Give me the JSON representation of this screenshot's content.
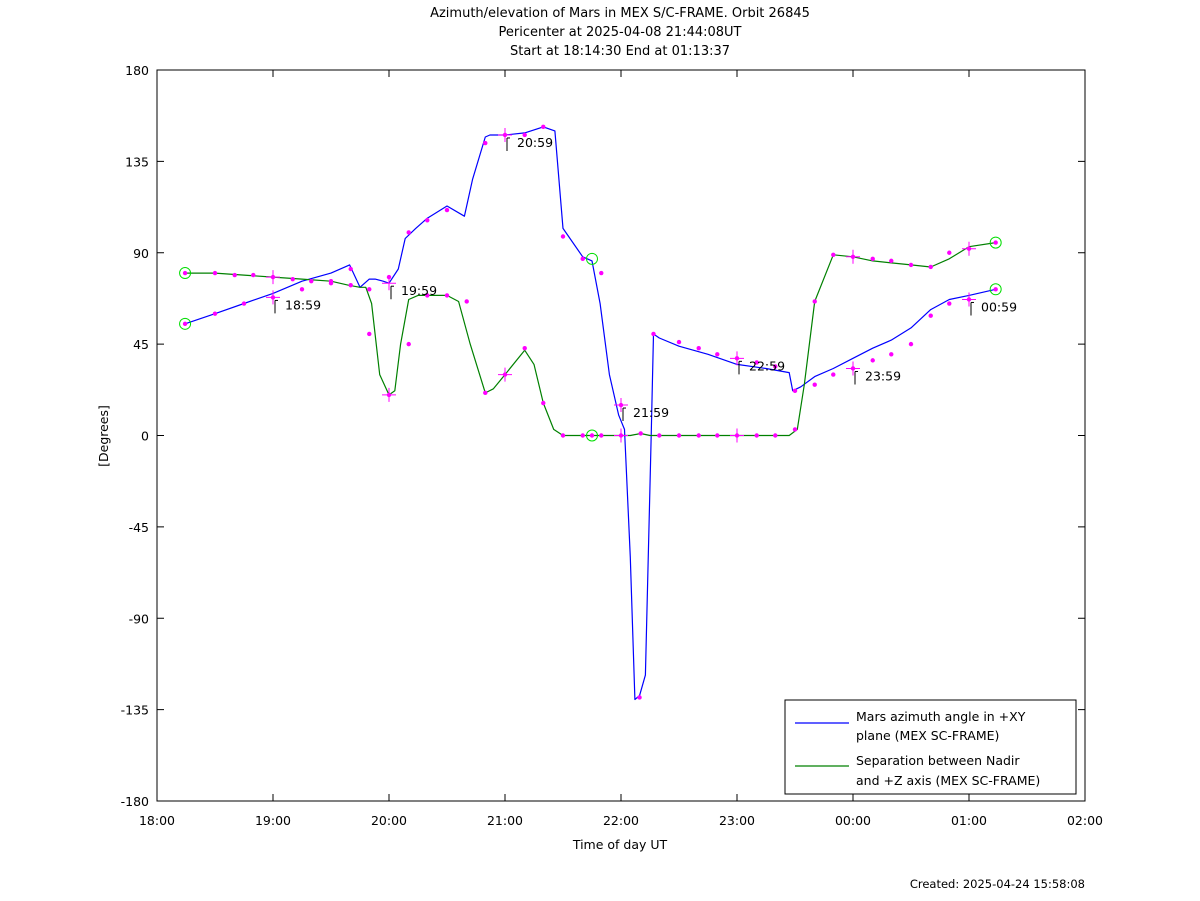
{
  "chart_data": {
    "type": "line",
    "title": "Azimuth/elevation of Mars in MEX S/C-FRAME.  Orbit 26845",
    "subtitle": "Pericenter at 2025-04-08 21:44:08UT",
    "subtitle2": "Start at 18:14:30 End at 01:13:37",
    "xlabel": "Time of day UT",
    "ylabel": "[Degrees]",
    "xlim": [
      18.0,
      26.0
    ],
    "ylim": [
      -180,
      180
    ],
    "x_ticks": [
      {
        "v": 18,
        "label": "18:00"
      },
      {
        "v": 19,
        "label": "19:00"
      },
      {
        "v": 20,
        "label": "20:00"
      },
      {
        "v": 21,
        "label": "21:00"
      },
      {
        "v": 22,
        "label": "22:00"
      },
      {
        "v": 23,
        "label": "23:00"
      },
      {
        "v": 24,
        "label": "00:00"
      },
      {
        "v": 25,
        "label": "01:00"
      },
      {
        "v": 26,
        "label": "02:00"
      }
    ],
    "y_ticks": [
      {
        "v": 180,
        "label": "180"
      },
      {
        "v": 135,
        "label": "135"
      },
      {
        "v": 90,
        "label": "90"
      },
      {
        "v": 45,
        "label": "45"
      },
      {
        "v": 0,
        "label": "0"
      },
      {
        "v": -45,
        "label": "-45"
      },
      {
        "v": -90,
        "label": "-90"
      },
      {
        "v": -135,
        "label": "-135"
      },
      {
        "v": -180,
        "label": "-180"
      }
    ],
    "grid": false,
    "legend_position": "bottom-right",
    "series": [
      {
        "name": "Mars azimuth angle in +XY plane (MEX SC-FRAME)",
        "legend_lines": [
          "Mars azimuth angle in +XY",
          "plane (MEX SC-FRAME)"
        ],
        "color": "#0000ff",
        "x": [
          18.242,
          18.5,
          18.75,
          19.0,
          19.25,
          19.5,
          19.66,
          19.75,
          19.83,
          19.88,
          19.95,
          20.0,
          20.08,
          20.14,
          20.23,
          20.33,
          20.5,
          20.65,
          20.72,
          20.83,
          20.87,
          21.0,
          21.17,
          21.33,
          21.43,
          21.5,
          21.67,
          21.75,
          21.82,
          21.9,
          21.98,
          22.03,
          22.08,
          22.12,
          22.16,
          22.21,
          22.26,
          22.28,
          22.33,
          22.5,
          22.75,
          23.0,
          23.25,
          23.45,
          23.48,
          23.55,
          23.67,
          23.83,
          24.0,
          24.17,
          24.33,
          24.5,
          24.67,
          24.83,
          25.0,
          25.23
        ],
        "y": [
          55,
          60,
          65,
          70,
          76,
          80,
          84,
          73,
          77,
          77,
          76,
          75,
          82,
          97,
          102,
          107,
          113,
          108,
          126,
          147,
          148,
          148,
          149,
          152,
          150,
          102,
          88,
          86,
          65,
          30,
          10,
          3,
          -60,
          -130,
          -128,
          -118,
          0,
          50,
          48,
          44,
          40,
          35,
          33,
          31,
          22,
          24,
          29,
          33,
          38,
          43,
          47,
          53,
          62,
          67,
          69,
          72
        ],
        "markers": [
          [
            18.242,
            55
          ],
          [
            18.5,
            60
          ],
          [
            18.75,
            65
          ],
          [
            19.0,
            68
          ],
          [
            19.25,
            72
          ],
          [
            19.5,
            76
          ],
          [
            19.67,
            82
          ],
          [
            19.83,
            72
          ],
          [
            20.0,
            78
          ],
          [
            20.17,
            100
          ],
          [
            20.33,
            106
          ],
          [
            20.5,
            111
          ],
          [
            20.83,
            144
          ],
          [
            21.0,
            148
          ],
          [
            21.17,
            148
          ],
          [
            21.33,
            152
          ],
          [
            21.5,
            98
          ],
          [
            21.67,
            87
          ],
          [
            21.83,
            80
          ],
          [
            22.0,
            15
          ],
          [
            22.16,
            -129
          ],
          [
            22.28,
            50
          ],
          [
            22.5,
            46
          ],
          [
            22.67,
            43
          ],
          [
            22.83,
            40
          ],
          [
            23.0,
            38
          ],
          [
            23.17,
            36
          ],
          [
            23.33,
            34
          ],
          [
            23.5,
            22
          ],
          [
            23.67,
            25
          ],
          [
            23.83,
            30
          ],
          [
            24.0,
            33
          ],
          [
            24.17,
            37
          ],
          [
            24.33,
            40
          ],
          [
            24.5,
            45
          ],
          [
            24.67,
            59
          ],
          [
            24.83,
            65
          ],
          [
            25.0,
            67
          ],
          [
            25.23,
            72
          ]
        ]
      },
      {
        "name": "Separation between Nadir and +Z axis (MEX SC-FRAME)",
        "legend_lines": [
          "Separation between Nadir",
          "and +Z axis (MEX SC-FRAME)"
        ],
        "color": "#008000",
        "x": [
          18.242,
          18.5,
          18.75,
          19.0,
          19.25,
          19.5,
          19.65,
          19.75,
          19.8,
          19.85,
          19.92,
          20.0,
          20.05,
          20.1,
          20.17,
          20.25,
          20.5,
          20.6,
          20.7,
          20.83,
          20.9,
          21.0,
          21.17,
          21.25,
          21.33,
          21.42,
          21.5,
          21.67,
          21.75,
          22.0,
          22.08,
          22.17,
          22.25,
          22.5,
          22.75,
          23.0,
          23.25,
          23.45,
          23.52,
          23.58,
          23.67,
          23.83,
          24.0,
          24.17,
          24.33,
          24.5,
          24.67,
          24.83,
          25.0,
          25.23
        ],
        "y": [
          80,
          80,
          79,
          78,
          77,
          76,
          74,
          73,
          73,
          65,
          30,
          20,
          22,
          45,
          67,
          69,
          69,
          66,
          45,
          21,
          23,
          30,
          42,
          35,
          16,
          3,
          0,
          0,
          0,
          0,
          0,
          1,
          0,
          0,
          0,
          0,
          0,
          0,
          3,
          25,
          66,
          89,
          88,
          86,
          85,
          84,
          83,
          87,
          93,
          95
        ],
        "markers": [
          [
            18.242,
            80
          ],
          [
            18.5,
            80
          ],
          [
            18.67,
            79
          ],
          [
            18.83,
            79
          ],
          [
            19.0,
            78
          ],
          [
            19.17,
            77
          ],
          [
            19.33,
            76
          ],
          [
            19.5,
            75
          ],
          [
            19.67,
            74
          ],
          [
            19.83,
            50
          ],
          [
            20.0,
            20
          ],
          [
            20.17,
            45
          ],
          [
            20.33,
            69
          ],
          [
            20.5,
            69
          ],
          [
            20.67,
            66
          ],
          [
            20.83,
            21
          ],
          [
            21.0,
            30
          ],
          [
            21.17,
            43
          ],
          [
            21.33,
            16
          ],
          [
            21.5,
            0
          ],
          [
            21.67,
            0
          ],
          [
            21.75,
            0
          ],
          [
            21.83,
            0
          ],
          [
            22.0,
            0
          ],
          [
            22.17,
            1
          ],
          [
            22.33,
            0
          ],
          [
            22.5,
            0
          ],
          [
            22.67,
            0
          ],
          [
            22.83,
            0
          ],
          [
            23.0,
            0
          ],
          [
            23.17,
            0
          ],
          [
            23.33,
            0
          ],
          [
            23.5,
            3
          ],
          [
            23.67,
            66
          ],
          [
            23.83,
            89
          ],
          [
            24.0,
            88
          ],
          [
            24.17,
            87
          ],
          [
            24.33,
            86
          ],
          [
            24.5,
            84
          ],
          [
            24.67,
            83
          ],
          [
            24.83,
            90
          ],
          [
            25.0,
            92
          ],
          [
            25.23,
            95
          ]
        ]
      }
    ],
    "plus_markers": [
      {
        "series": 0,
        "x": 19.0,
        "y": 68
      },
      {
        "series": 0,
        "x": 21.0,
        "y": 148
      },
      {
        "series": 0,
        "x": 22.0,
        "y": 15
      },
      {
        "series": 0,
        "x": 23.0,
        "y": 38
      },
      {
        "series": 0,
        "x": 24.0,
        "y": 33
      },
      {
        "series": 0,
        "x": 25.0,
        "y": 67
      },
      {
        "series": 1,
        "x": 19.0,
        "y": 78
      },
      {
        "series": 1,
        "x": 20.0,
        "y": 20
      },
      {
        "series": 1,
        "x": 21.0,
        "y": 30
      },
      {
        "series": 1,
        "x": 22.0,
        "y": 0
      },
      {
        "series": 1,
        "x": 23.0,
        "y": 0
      },
      {
        "series": 1,
        "x": 24.0,
        "y": 88
      },
      {
        "series": 1,
        "x": 25.0,
        "y": 92
      },
      {
        "series": 1,
        "x": 20.0,
        "y": 75
      }
    ],
    "circle_markers": [
      {
        "series": 0,
        "x": 18.242,
        "y": 55
      },
      {
        "series": 0,
        "x": 25.23,
        "y": 72
      },
      {
        "series": 1,
        "x": 18.242,
        "y": 80
      },
      {
        "series": 1,
        "x": 21.75,
        "y": 0
      },
      {
        "series": 1,
        "x": 21.75,
        "y": 87
      },
      {
        "series": 1,
        "x": 25.23,
        "y": 95
      }
    ],
    "annotations": [
      {
        "x": 19.0,
        "y": 68,
        "label": "18:59"
      },
      {
        "x": 20.0,
        "y": 75,
        "label": "19:59"
      },
      {
        "x": 21.0,
        "y": 148,
        "label": "20:59"
      },
      {
        "x": 22.0,
        "y": 15,
        "label": "21:59"
      },
      {
        "x": 23.0,
        "y": 38,
        "label": "22:59"
      },
      {
        "x": 24.0,
        "y": 33,
        "label": "23:59"
      },
      {
        "x": 25.0,
        "y": 67,
        "label": "00:59"
      }
    ]
  },
  "created": "Created: 2025-04-24 15:58:08"
}
